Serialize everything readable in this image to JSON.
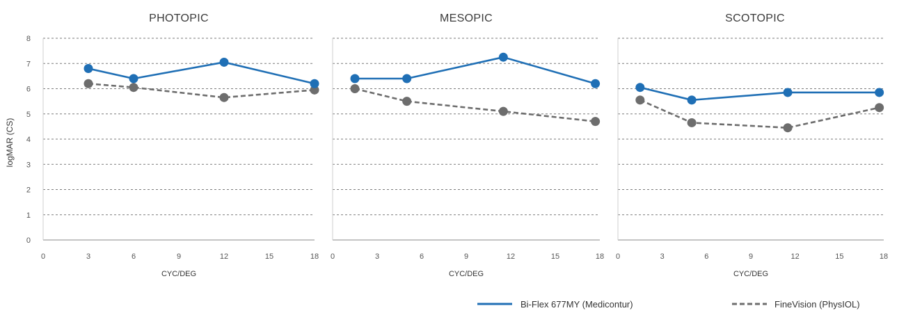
{
  "colors": {
    "series_a": "#1f6fb5",
    "series_b": "#6d6d6d",
    "grid": "#7a7a7a",
    "axis": "#8a8a8a"
  },
  "ylabel": "logMAR (CS)",
  "chart_data": [
    {
      "type": "line",
      "title": "PHOTOPIC",
      "xlabel": "CYC/DEG",
      "xlim": [
        0,
        18
      ],
      "ylim": [
        0,
        8
      ],
      "xticks": [
        "0",
        "3",
        "6",
        "9",
        "12",
        "15",
        "18"
      ],
      "yticks": [
        "0",
        "1",
        "2",
        "3",
        "4",
        "5",
        "6",
        "7",
        "8"
      ],
      "grid": true,
      "series": [
        {
          "name": "Bi-Flex 677MY (Medicontur)",
          "x": [
            3,
            6,
            12,
            18
          ],
          "values": [
            6.8,
            6.4,
            7.05,
            6.2
          ]
        },
        {
          "name": "FineVision (PhysIOL)",
          "x": [
            3,
            6,
            12,
            18
          ],
          "values": [
            6.2,
            6.05,
            5.65,
            5.95
          ]
        }
      ]
    },
    {
      "type": "line",
      "title": "MESOPIC",
      "xlabel": "CYC/DEG",
      "xlim": [
        0,
        18
      ],
      "ylim": [
        0,
        8
      ],
      "xticks": [
        "0",
        "3",
        "6",
        "9",
        "12",
        "15",
        "18"
      ],
      "yticks": [],
      "grid": true,
      "series": [
        {
          "name": "Bi-Flex 677MY (Medicontur)",
          "x": [
            1.5,
            5,
            11.5,
            17.7
          ],
          "values": [
            6.4,
            6.4,
            7.25,
            6.2
          ]
        },
        {
          "name": "FineVision (PhysIOL)",
          "x": [
            1.5,
            5,
            11.5,
            17.7
          ],
          "values": [
            6.0,
            5.5,
            5.1,
            4.7
          ]
        }
      ]
    },
    {
      "type": "line",
      "title": "SCOTOPIC",
      "xlabel": "CYC/DEG",
      "xlim": [
        0,
        18
      ],
      "ylim": [
        0,
        8
      ],
      "xticks": [
        "0",
        "3",
        "6",
        "9",
        "12",
        "15",
        "18"
      ],
      "yticks": [],
      "grid": true,
      "series": [
        {
          "name": "Bi-Flex 677MY (Medicontur)",
          "x": [
            1.5,
            5,
            11.5,
            17.7
          ],
          "values": [
            6.05,
            5.55,
            5.85,
            5.85
          ]
        },
        {
          "name": "FineVision (PhysIOL)",
          "x": [
            1.5,
            5,
            11.5,
            17.7
          ],
          "values": [
            5.55,
            4.65,
            4.45,
            5.25
          ]
        }
      ]
    }
  ],
  "legend": [
    {
      "label": "Bi-Flex 677MY (Medicontur)",
      "style": "solid"
    },
    {
      "label": "FineVision (PhysIOL)",
      "style": "dashed"
    }
  ]
}
